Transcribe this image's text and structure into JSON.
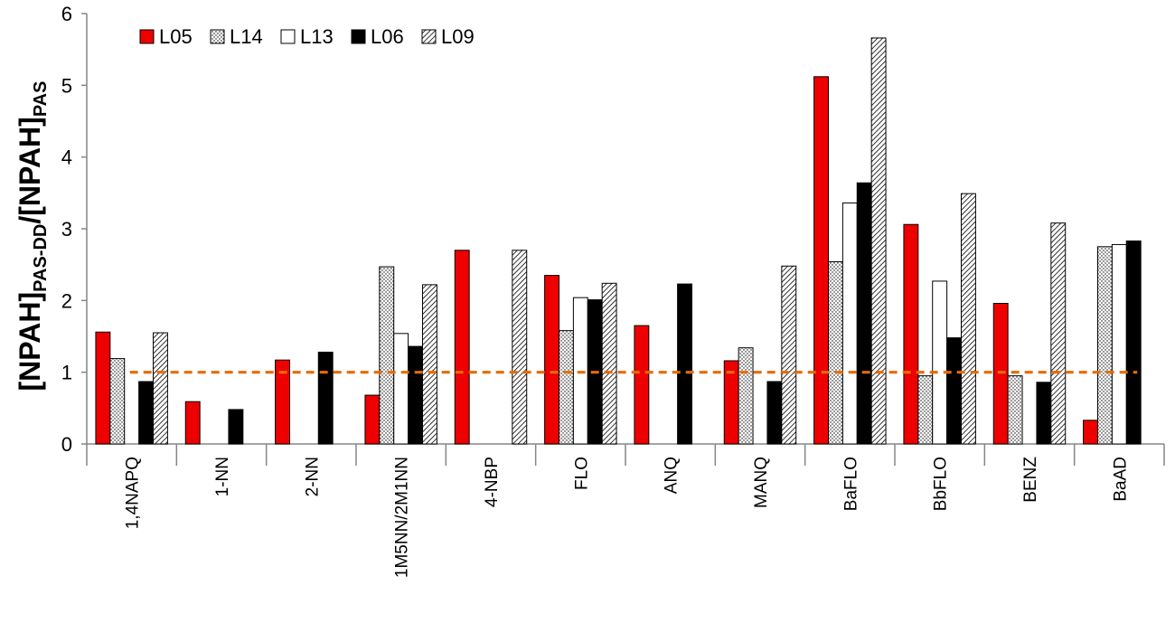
{
  "chart_data": {
    "type": "bar",
    "title": "",
    "xlabel": "",
    "ylabel": {
      "parts": [
        {
          "text": "[NPAH]",
          "sub": false
        },
        {
          "text": "PAS-DD",
          "sub": true
        },
        {
          "text": "/[NPAH]",
          "sub": false
        },
        {
          "text": "PAS",
          "sub": true
        }
      ]
    },
    "ylim": [
      0,
      6
    ],
    "yticks": [
      "0",
      "1",
      "2",
      "3",
      "4",
      "5",
      "6"
    ],
    "grid": false,
    "legend_position": "top-left",
    "reference_line": {
      "y": 1,
      "color": "#e36c0a",
      "style": "dashed"
    },
    "categories": [
      "1,4NAPQ",
      "1-NN",
      "2-NN",
      "1M5NN/2M1NN",
      "4-NBP",
      "FLO",
      "ANQ",
      "MANQ",
      "BaFLO",
      "BbFLO",
      "BENZ",
      "BaAD"
    ],
    "series": [
      {
        "name": "L05",
        "fill": "solid-red",
        "color": "#ee0000",
        "values": [
          1.56,
          0.59,
          1.17,
          0.68,
          2.7,
          2.35,
          1.65,
          1.16,
          5.12,
          3.06,
          1.96,
          0.33
        ]
      },
      {
        "name": "L14",
        "fill": "dotted",
        "color": "#ffffff",
        "values": [
          1.19,
          null,
          null,
          2.47,
          null,
          1.58,
          null,
          1.34,
          2.54,
          0.95,
          0.95,
          2.75
        ]
      },
      {
        "name": "L13",
        "fill": "white",
        "color": "#ffffff",
        "values": [
          null,
          null,
          null,
          1.54,
          null,
          2.04,
          null,
          null,
          3.36,
          2.27,
          null,
          2.78
        ]
      },
      {
        "name": "L06",
        "fill": "solid-black",
        "color": "#000000",
        "values": [
          0.87,
          0.48,
          1.28,
          1.36,
          null,
          2.01,
          2.23,
          0.87,
          3.64,
          1.48,
          0.86,
          2.83
        ]
      },
      {
        "name": "L09",
        "fill": "diagonal-hatch",
        "color": "#ffffff",
        "values": [
          1.55,
          null,
          null,
          2.22,
          2.7,
          2.24,
          null,
          2.48,
          5.66,
          3.49,
          3.08,
          null
        ]
      }
    ]
  }
}
